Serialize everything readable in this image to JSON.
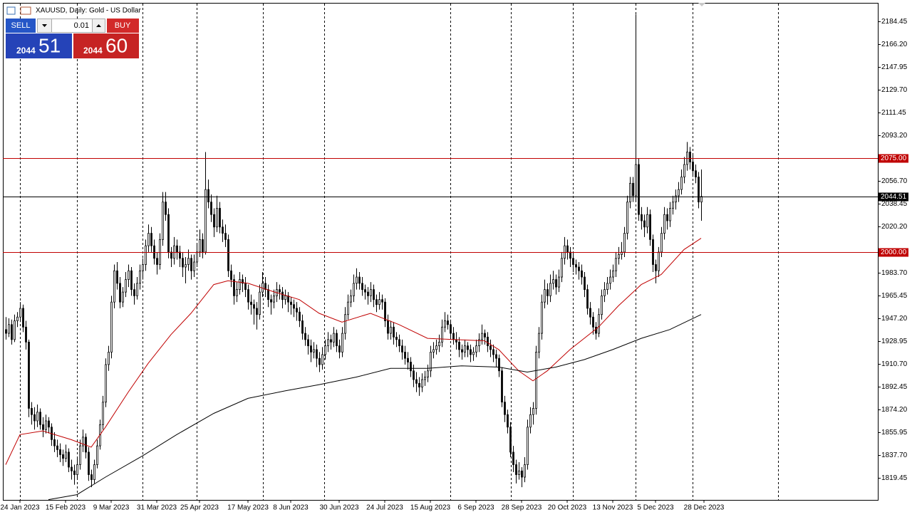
{
  "title": "XAUUSD, Daily:  Gold - US Dollar",
  "trade_panel": {
    "sell": "SELL",
    "buy": "BUY",
    "volume": "0.01",
    "bid_big": "2044",
    "bid_small": "51",
    "ask_big": "2044",
    "ask_small": "60"
  },
  "chart_data": {
    "type": "candlestick",
    "xlim": [
      -1,
      306
    ],
    "ylim": [
      1801.8,
      2199.26
    ],
    "xticks": [
      {
        "value": 5,
        "label": "24 Jan 2023"
      },
      {
        "value": 21,
        "label": "15 Feb 2023"
      },
      {
        "value": 37,
        "label": "9 Mar 2023"
      },
      {
        "value": 53,
        "label": "31 Mar 2023"
      },
      {
        "value": 68,
        "label": "25 Apr 2023"
      },
      {
        "value": 85,
        "label": "17 May 2023"
      },
      {
        "value": 100,
        "label": "8 Jun 2023"
      },
      {
        "value": 117,
        "label": "30 Jun 2023"
      },
      {
        "value": 133,
        "label": "24 Jul 2023"
      },
      {
        "value": 149,
        "label": "15 Aug 2023"
      },
      {
        "value": 165,
        "label": "6 Sep 2023"
      },
      {
        "value": 181,
        "label": "28 Sep 2023"
      },
      {
        "value": 197,
        "label": "20 Oct 2023"
      },
      {
        "value": 213,
        "label": "13 Nov 2023"
      },
      {
        "value": 228,
        "label": "5 Dec 2023"
      },
      {
        "value": 245,
        "label": "28 Dec 2023"
      }
    ],
    "yticks": [
      2184.45,
      {
        "value": 2166.2,
        "label": "2166.20"
      },
      2147.95,
      {
        "value": 2129.7,
        "label": "2129.70"
      },
      2111.45,
      {
        "value": 2093.2,
        "label": "2093.20"
      },
      {
        "value": 2056.7,
        "label": "2056.70"
      },
      2038.45,
      {
        "value": 2020.2,
        "label": "2020.20"
      },
      {
        "value": 1983.7,
        "label": "1983.70"
      },
      1965.45,
      {
        "value": 1947.2,
        "label": "1947.20"
      },
      1928.95,
      {
        "value": 1910.7,
        "label": "1910.70"
      },
      1892.45,
      {
        "value": 1874.2,
        "label": "1874.20"
      },
      1855.95,
      {
        "value": 1837.7,
        "label": "1837.70"
      },
      1819.45
    ],
    "levels": [
      {
        "value": 2075,
        "label": "2075.00",
        "color": "#c00000"
      },
      {
        "value": 2000,
        "label": "2000.00",
        "color": "#c00000"
      },
      {
        "value": 2044.51,
        "label": "2044.51",
        "color": "#000000"
      }
    ],
    "candle_up_color": "#ffffff",
    "candle_down_color": "#000000",
    "ohlc": {
      "open": [
        1938,
        1935,
        1942,
        1930,
        1945,
        1948,
        1955,
        1940,
        1928,
        1875,
        1870,
        1865,
        1872,
        1862,
        1858,
        1865,
        1860,
        1850,
        1845,
        1842,
        1838,
        1835,
        1840,
        1828,
        1825,
        1822,
        1830,
        1845,
        1852,
        1840,
        1822,
        1818,
        1830,
        1845,
        1862,
        1880,
        1910,
        1920,
        1960,
        1985,
        1975,
        1960,
        1968,
        1978,
        1985,
        1970,
        1965,
        1975,
        1985,
        1990,
        2005,
        2015,
        2005,
        1995,
        1990,
        2010,
        2040,
        2030,
        2000,
        1995,
        2005,
        2000,
        1995,
        1988,
        1990,
        1995,
        1985,
        1992,
        2000,
        2010,
        2000,
        2050,
        2040,
        2030,
        2020,
        2035,
        2020,
        2015,
        2010,
        1985,
        1978,
        1965,
        1970,
        1978,
        1975,
        1970,
        1960,
        1958,
        1955,
        1950,
        1968,
        1975,
        1970,
        1962,
        1960,
        1965,
        1970,
        1968,
        1962,
        1965,
        1960,
        1958,
        1955,
        1952,
        1945,
        1935,
        1930,
        1925,
        1920,
        1922,
        1915,
        1910,
        1918,
        1925,
        1930,
        1928,
        1935,
        1925,
        1920,
        1935,
        1950,
        1960,
        1965,
        1975,
        1980,
        1975,
        1970,
        1968,
        1965,
        1970,
        1962,
        1958,
        1962,
        1960,
        1945,
        1935,
        1940,
        1932,
        1930,
        1925,
        1920,
        1915,
        1912,
        1905,
        1898,
        1895,
        1892,
        1898,
        1900,
        1905,
        1920,
        1922,
        1925,
        1928,
        1940,
        1945,
        1942,
        1935,
        1930,
        1928,
        1922,
        1920,
        1925,
        1922,
        1918,
        1920,
        1925,
        1930,
        1935,
        1932,
        1925,
        1922,
        1918,
        1915,
        1905,
        1880,
        1870,
        1860,
        1840,
        1830,
        1822,
        1825,
        1820,
        1830,
        1860,
        1870,
        1875,
        1920,
        1935,
        1960,
        1970,
        1965,
        1975,
        1978,
        1972,
        1980,
        1995,
        2005,
        2000,
        1995,
        1990,
        1988,
        1985,
        1980,
        1970,
        1955,
        1948,
        1940,
        1935,
        1950,
        1965,
        1970,
        1975,
        1980,
        1985,
        1995,
        1998,
        2000,
        2015,
        2040,
        2055,
        2045,
        2070,
        2030,
        2025,
        2020,
        2030,
        2010,
        1990,
        1985,
        2000,
        2015,
        2030,
        2025,
        2035,
        2040,
        2045,
        2050,
        2060,
        2070,
        2080,
        2072,
        2065,
        2060,
        2040
      ],
      "high": [
        1948,
        1947,
        1946,
        1950,
        1952,
        1960,
        1958,
        1945,
        1930,
        1880,
        1876,
        1878,
        1875,
        1868,
        1870,
        1868,
        1863,
        1856,
        1850,
        1847,
        1842,
        1846,
        1843,
        1834,
        1830,
        1835,
        1850,
        1858,
        1855,
        1844,
        1826,
        1834,
        1850,
        1866,
        1885,
        1915,
        1925,
        1965,
        1990,
        1992,
        1980,
        1972,
        1984,
        1990,
        1988,
        1975,
        1980,
        1990,
        1995,
        2010,
        2022,
        2020,
        2010,
        2000,
        2015,
        2048,
        2048,
        2035,
        2004,
        2012,
        2010,
        2005,
        2000,
        1996,
        2002,
        1998,
        1998,
        2006,
        2018,
        2015,
        2080,
        2058,
        2046,
        2035,
        2045,
        2040,
        2026,
        2022,
        2014,
        1990,
        1982,
        1976,
        1984,
        1982,
        1980,
        1974,
        1966,
        1962,
        1960,
        1974,
        1984,
        1980,
        1974,
        1966,
        1970,
        1976,
        1974,
        1972,
        1970,
        1968,
        1964,
        1962,
        1960,
        1956,
        1950,
        1940,
        1934,
        1930,
        1928,
        1926,
        1920,
        1924,
        1930,
        1936,
        1934,
        1940,
        1938,
        1930,
        1940,
        1956,
        1966,
        1970,
        1982,
        1987,
        1984,
        1980,
        1974,
        1972,
        1976,
        1974,
        1966,
        1968,
        1966,
        1963,
        1950,
        1945,
        1944,
        1936,
        1934,
        1930,
        1925,
        1920,
        1916,
        1910,
        1904,
        1900,
        1903,
        1905,
        1910,
        1925,
        1928,
        1930,
        1934,
        1946,
        1952,
        1950,
        1946,
        1940,
        1936,
        1932,
        1926,
        1930,
        1928,
        1926,
        1924,
        1930,
        1935,
        1942,
        1938,
        1936,
        1930,
        1926,
        1922,
        1918,
        1908,
        1885,
        1874,
        1864,
        1845,
        1834,
        1832,
        1828,
        1836,
        1866,
        1876,
        1880,
        1925,
        1940,
        1966,
        1978,
        1975,
        1982,
        1985,
        1982,
        1986,
        2000,
        2012,
        2010,
        2004,
        2000,
        1994,
        1992,
        1990,
        1984,
        1974,
        1960,
        1952,
        1944,
        1955,
        1970,
        1976,
        1980,
        1986,
        1990,
        2000,
        2004,
        2008,
        2020,
        2045,
        2060,
        2060,
        2190,
        2075,
        2036,
        2030,
        2036,
        2034,
        2014,
        1994,
        2004,
        2020,
        2036,
        2035,
        2040,
        2045,
        2050,
        2056,
        2066,
        2076,
        2088,
        2084,
        2078,
        2070,
        2064,
        2066
      ],
      "low": [
        1930,
        1932,
        1926,
        1928,
        1940,
        1944,
        1936,
        1922,
        1868,
        1862,
        1858,
        1860,
        1858,
        1852,
        1855,
        1855,
        1845,
        1840,
        1836,
        1832,
        1829,
        1832,
        1824,
        1818,
        1814,
        1818,
        1826,
        1840,
        1835,
        1817,
        1812,
        1815,
        1827,
        1842,
        1858,
        1876,
        1905,
        1915,
        1955,
        1970,
        1955,
        1956,
        1964,
        1972,
        1965,
        1958,
        1962,
        1970,
        1978,
        1985,
        2000,
        2000,
        1990,
        1982,
        1986,
        2005,
        2025,
        1995,
        1988,
        1990,
        1994,
        1988,
        1980,
        1975,
        1985,
        1978,
        1980,
        1988,
        1996,
        1995,
        1998,
        2035,
        2024,
        2012,
        2016,
        2015,
        2008,
        2004,
        1980,
        1972,
        1958,
        1960,
        1966,
        1968,
        1964,
        1954,
        1950,
        1942,
        1938,
        1946,
        1964,
        1964,
        1956,
        1950,
        1955,
        1960,
        1962,
        1955,
        1958,
        1952,
        1950,
        1948,
        1945,
        1940,
        1930,
        1925,
        1918,
        1912,
        1915,
        1908,
        1904,
        1906,
        1914,
        1920,
        1922,
        1924,
        1920,
        1915,
        1916,
        1930,
        1946,
        1956,
        1960,
        1970,
        1970,
        1965,
        1962,
        1958,
        1960,
        1956,
        1952,
        1954,
        1954,
        1940,
        1930,
        1930,
        1926,
        1924,
        1920,
        1914,
        1910,
        1906,
        1900,
        1892,
        1888,
        1885,
        1888,
        1893,
        1896,
        1900,
        1915,
        1918,
        1920,
        1924,
        1936,
        1938,
        1930,
        1926,
        1922,
        1916,
        1914,
        1916,
        1916,
        1912,
        1913,
        1916,
        1920,
        1926,
        1926,
        1920,
        1916,
        1912,
        1908,
        1900,
        1876,
        1864,
        1855,
        1836,
        1824,
        1815,
        1818,
        1812,
        1816,
        1826,
        1855,
        1862,
        1870,
        1915,
        1930,
        1955,
        1958,
        1960,
        1970,
        1966,
        1968,
        1976,
        1990,
        1994,
        1988,
        1984,
        1982,
        1978,
        1974,
        1964,
        1950,
        1942,
        1934,
        1930,
        1932,
        1946,
        1960,
        1966,
        1970,
        1976,
        1980,
        1990,
        1994,
        1996,
        2010,
        2035,
        2040,
        2040,
        2025,
        2018,
        2012,
        2015,
        2005,
        1984,
        1975,
        1980,
        1996,
        2010,
        2018,
        2020,
        2030,
        2034,
        2040,
        2046,
        2055,
        2065,
        2066,
        2060,
        2055,
        2035,
        2025
      ],
      "close": [
        1935,
        1942,
        1930,
        1945,
        1948,
        1955,
        1940,
        1928,
        1875,
        1870,
        1865,
        1872,
        1862,
        1858,
        1865,
        1860,
        1850,
        1845,
        1842,
        1838,
        1835,
        1840,
        1828,
        1825,
        1822,
        1830,
        1845,
        1852,
        1840,
        1822,
        1818,
        1830,
        1845,
        1862,
        1880,
        1910,
        1920,
        1960,
        1985,
        1975,
        1960,
        1968,
        1978,
        1985,
        1970,
        1965,
        1975,
        1985,
        1990,
        2005,
        2015,
        2005,
        1995,
        1990,
        2010,
        2040,
        2030,
        2000,
        1995,
        2005,
        2000,
        1995,
        1988,
        1990,
        1995,
        1985,
        1992,
        2000,
        2010,
        2000,
        2050,
        2040,
        2030,
        2020,
        2035,
        2020,
        2015,
        2010,
        1985,
        1978,
        1965,
        1970,
        1978,
        1975,
        1970,
        1960,
        1958,
        1955,
        1950,
        1968,
        1975,
        1970,
        1962,
        1960,
        1965,
        1970,
        1968,
        1962,
        1965,
        1960,
        1958,
        1955,
        1952,
        1945,
        1935,
        1930,
        1925,
        1920,
        1922,
        1915,
        1910,
        1918,
        1925,
        1930,
        1928,
        1935,
        1925,
        1920,
        1935,
        1950,
        1960,
        1965,
        1975,
        1980,
        1975,
        1970,
        1968,
        1965,
        1970,
        1962,
        1958,
        1962,
        1960,
        1945,
        1935,
        1940,
        1932,
        1930,
        1925,
        1920,
        1915,
        1912,
        1905,
        1898,
        1895,
        1892,
        1898,
        1900,
        1905,
        1920,
        1922,
        1925,
        1928,
        1940,
        1945,
        1942,
        1935,
        1930,
        1928,
        1922,
        1920,
        1925,
        1922,
        1918,
        1920,
        1925,
        1930,
        1935,
        1932,
        1925,
        1922,
        1918,
        1915,
        1905,
        1880,
        1870,
        1860,
        1840,
        1830,
        1822,
        1825,
        1820,
        1830,
        1860,
        1870,
        1875,
        1920,
        1935,
        1960,
        1970,
        1965,
        1975,
        1978,
        1972,
        1980,
        1995,
        2005,
        2000,
        1995,
        1990,
        1988,
        1985,
        1980,
        1970,
        1955,
        1948,
        1940,
        1935,
        1950,
        1965,
        1970,
        1975,
        1980,
        1985,
        1995,
        1998,
        2000,
        2015,
        2040,
        2055,
        2045,
        2070,
        2030,
        2025,
        2020,
        2030,
        2010,
        1990,
        1985,
        2000,
        2015,
        2030,
        2025,
        2035,
        2040,
        2045,
        2050,
        2060,
        2070,
        2080,
        2072,
        2065,
        2060,
        2040,
        2044.51
      ]
    },
    "moving_averages": [
      {
        "color": "#c00000",
        "x": [
          0,
          5,
          13,
          23,
          30,
          35,
          43,
          50,
          58,
          65,
          73,
          78,
          85,
          93,
          103,
          110,
          118,
          128,
          138,
          148,
          158,
          168,
          173,
          180,
          185,
          190,
          198,
          208,
          215,
          223,
          230,
          238,
          244
        ],
        "values": [
          1830,
          1854,
          1857,
          1850,
          1844,
          1860,
          1888,
          1911,
          1934,
          1951,
          1974,
          1977,
          1975,
          1969,
          1962,
          1951,
          1944,
          1951,
          1942,
          1931,
          1930,
          1929,
          1922,
          1905,
          1897,
          1905,
          1922,
          1940,
          1957,
          1974,
          1982,
          2002,
          2011
        ]
      },
      {
        "color": "#000000",
        "x": [
          15,
          25,
          35,
          48,
          60,
          73,
          85,
          98,
          110,
          123,
          135,
          148,
          160,
          173,
          183,
          193,
          203,
          213,
          223,
          233,
          244
        ],
        "values": [
          1802,
          1806,
          1820,
          1837,
          1854,
          1871,
          1883,
          1889,
          1894,
          1900,
          1907,
          1907,
          1909,
          1908,
          1904,
          1908,
          1914,
          1922,
          1931,
          1938,
          1950
        ]
      }
    ]
  }
}
